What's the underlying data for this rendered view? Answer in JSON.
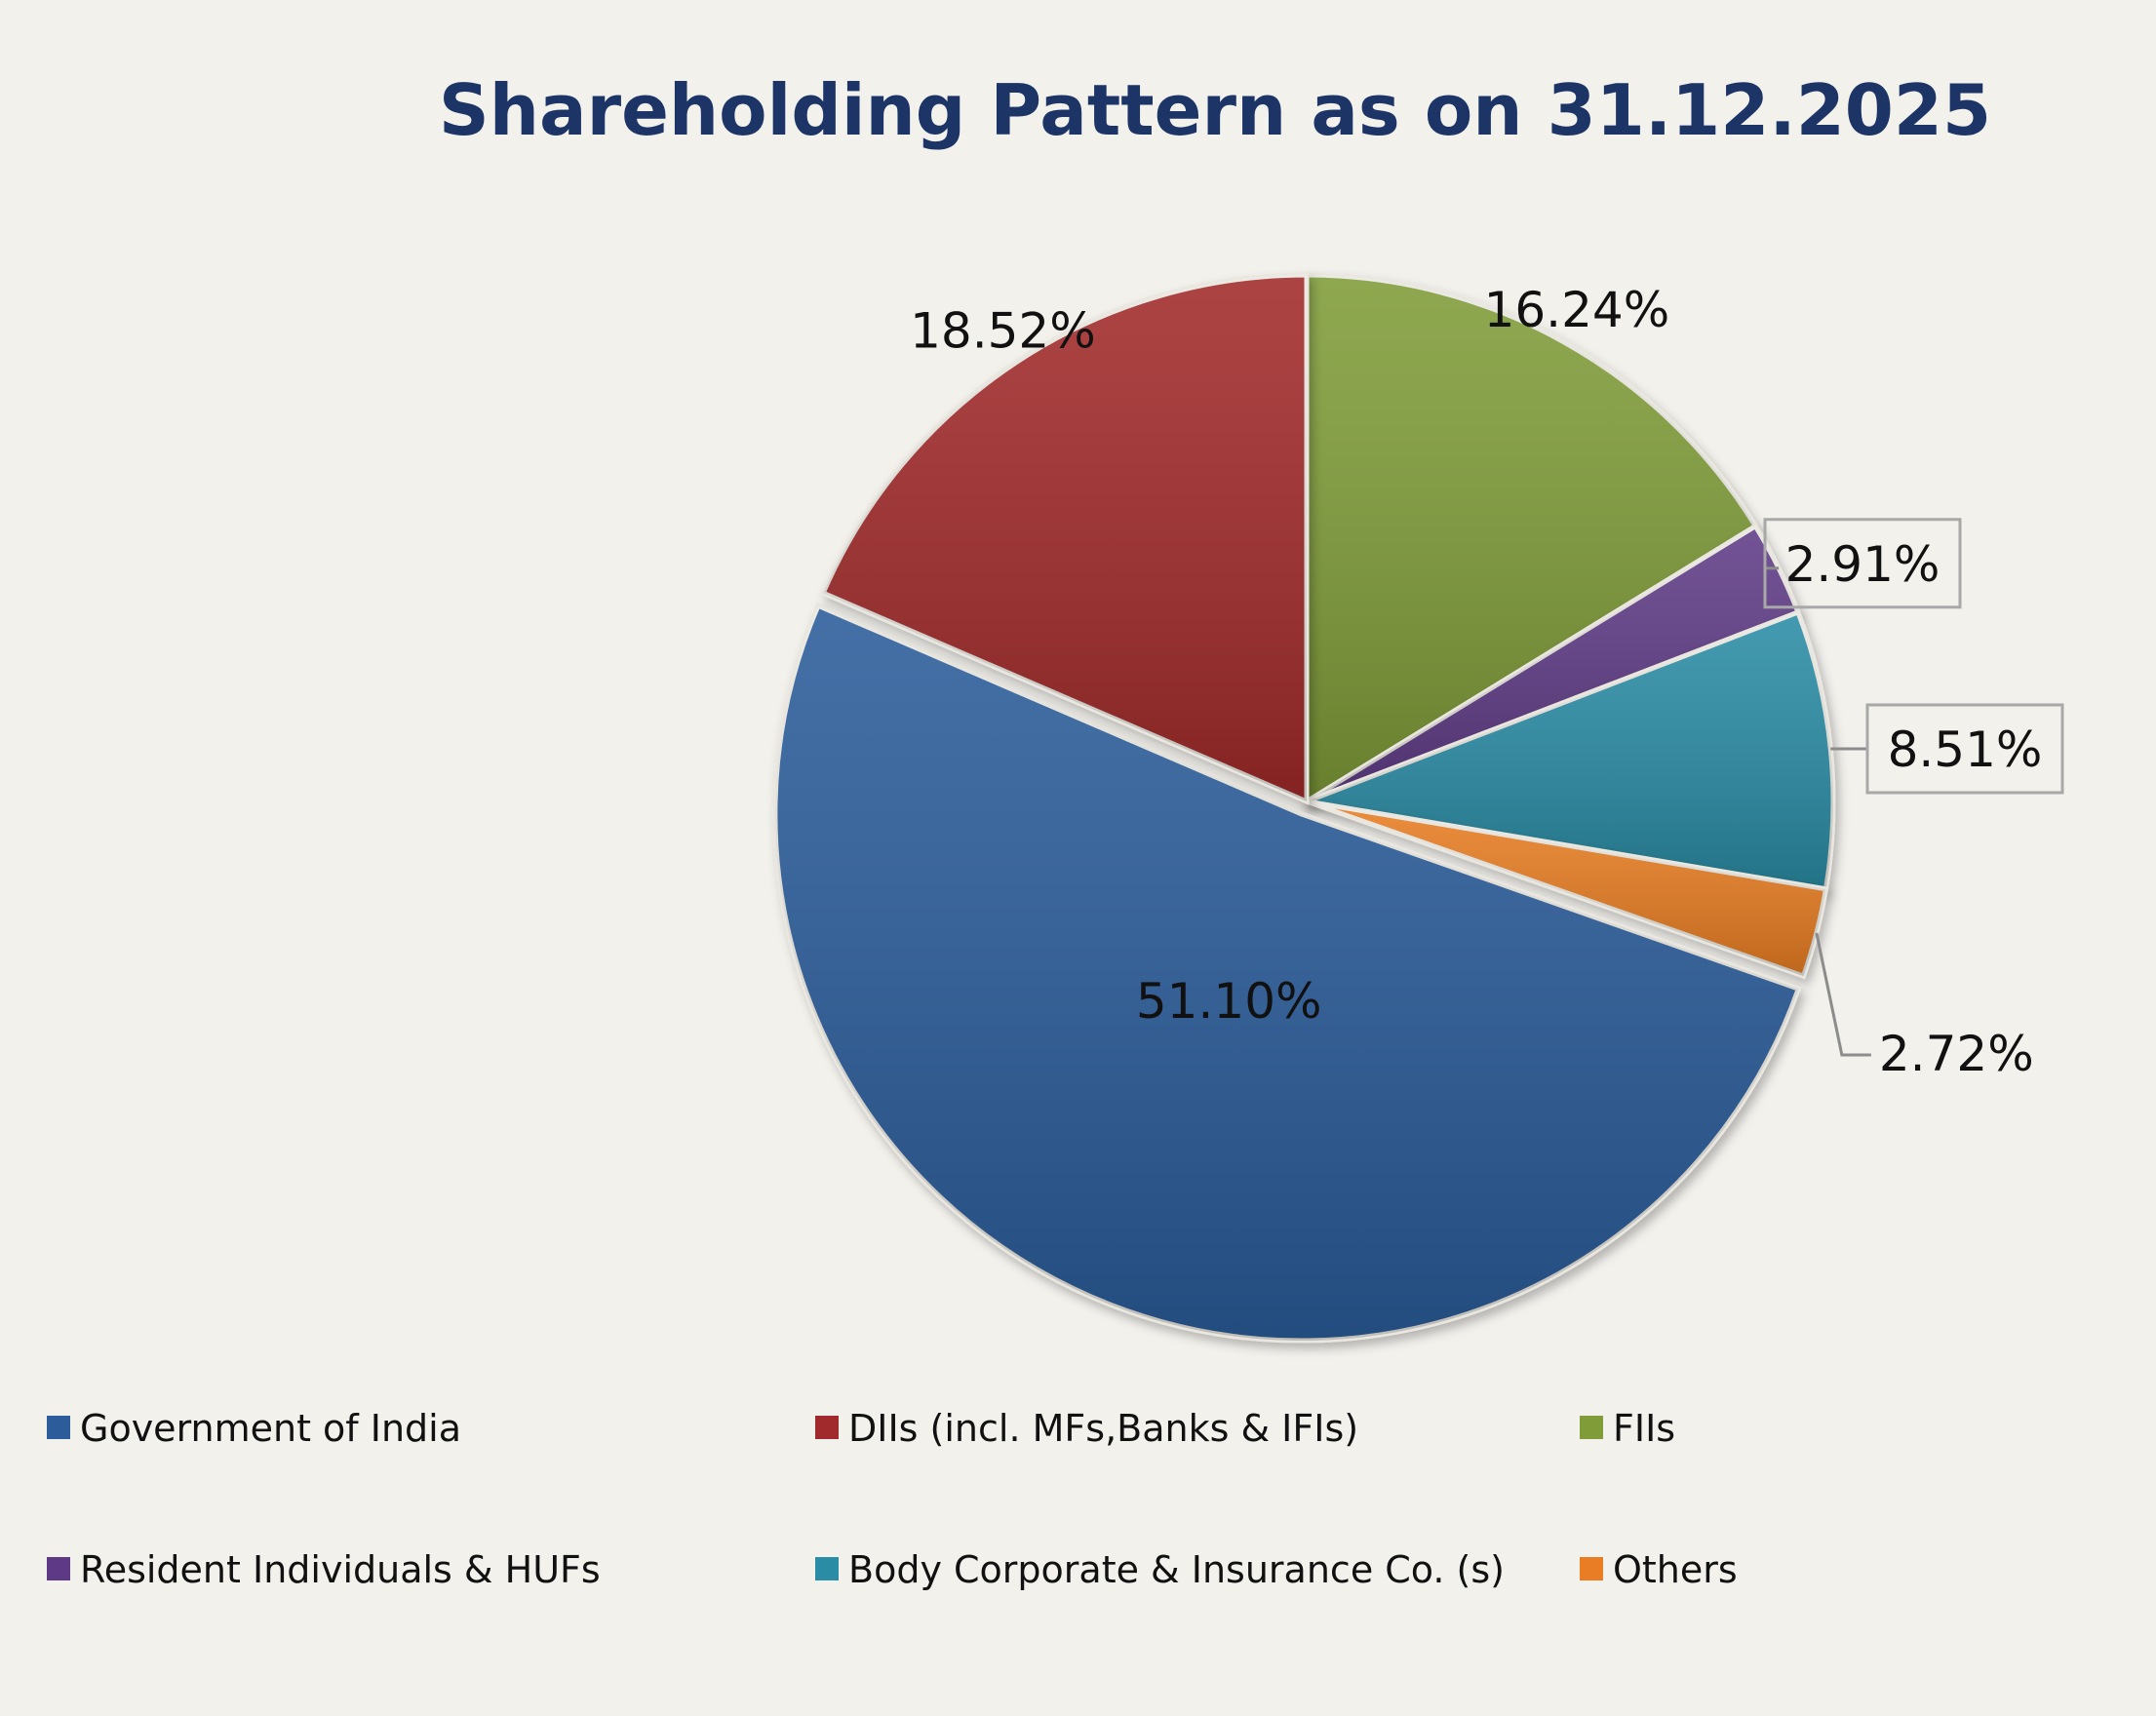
{
  "colors": {
    "background": "#f2f1ec",
    "title": "#1c3566",
    "label_text": "#111111",
    "callout_border": "#a8a8a8",
    "leader_line": "#8c8c8c"
  },
  "chart_data": {
    "type": "pie",
    "title": "Shareholding Pattern as on 31.12.2025",
    "start_angle_deg": 0,
    "direction": "clockwise",
    "legend_position": "bottom",
    "slices": [
      {
        "name": "FIIs",
        "value": 16.24,
        "label": "16.24%",
        "color": "#7f9c38",
        "callout": false
      },
      {
        "name": "Resident  Individuals & HUFs",
        "value": 2.91,
        "label": "2.91%",
        "color": "#5e3a86",
        "callout": true
      },
      {
        "name": "Body Corporate & Insurance Co. (s)",
        "value": 8.51,
        "label": "8.51%",
        "color": "#2a8ca5",
        "callout": true
      },
      {
        "name": "Others",
        "value": 2.72,
        "label": "2.72%",
        "color": "#e87d24",
        "callout": false
      },
      {
        "name": "Government of India",
        "value": 51.1,
        "label": "51.10%",
        "color": "#2c5c9a",
        "callout": false
      },
      {
        "name": "DIIs (incl. MFs,Banks & IFIs)",
        "value": 18.52,
        "label": "18.52%",
        "color": "#a12b2c",
        "callout": false
      }
    ],
    "legend": [
      {
        "label": "Government of India",
        "color": "#2c5c9a"
      },
      {
        "label": "DIIs (incl. MFs,Banks & IFIs)",
        "color": "#a12b2c"
      },
      {
        "label": "FIIs",
        "color": "#7f9c38"
      },
      {
        "label": "Resident  Individuals & HUFs",
        "color": "#5e3a86"
      },
      {
        "label": "Body Corporate & Insurance Co. (s)",
        "color": "#2a8ca5"
      },
      {
        "label": "Others",
        "color": "#e87d24"
      }
    ]
  }
}
